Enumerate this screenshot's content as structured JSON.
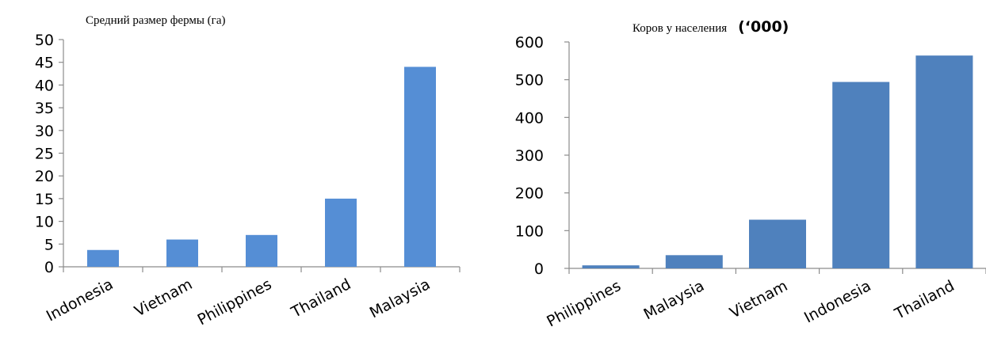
{
  "chart_data": [
    {
      "type": "bar",
      "title": "Средний размер фермы (га)",
      "title_suffix": "",
      "xlabel": "",
      "ylabel": "",
      "categories": [
        "Indonesia",
        "Vietnam",
        "Philippines",
        "Thailand",
        "Malaysia"
      ],
      "values": [
        3.7,
        6,
        7,
        15,
        44
      ],
      "ylim": [
        0,
        50
      ],
      "yticks": [
        0,
        5,
        10,
        15,
        20,
        25,
        30,
        35,
        40,
        45,
        50
      ],
      "bar_color": "#558ED5",
      "grid": false,
      "legend": "none"
    },
    {
      "type": "bar",
      "title": "Коров у населения",
      "title_suffix": "(‘000)",
      "xlabel": "",
      "ylabel": "",
      "categories": [
        "Philippines",
        "Malaysia",
        "Vietnam",
        "Indonesia",
        "Thailand"
      ],
      "values": [
        8,
        35,
        129,
        494,
        564
      ],
      "ylim": [
        0,
        600
      ],
      "yticks": [
        0,
        100,
        200,
        300,
        400,
        500,
        600
      ],
      "bar_color": "#4F81BD",
      "grid": false,
      "legend": "none"
    }
  ]
}
